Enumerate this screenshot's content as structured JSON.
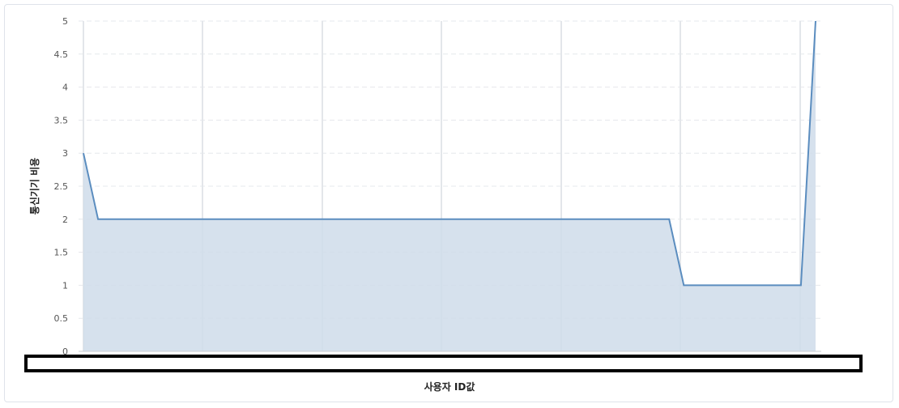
{
  "chart_data": {
    "type": "area",
    "title": "",
    "xlabel": "사용자 ID값",
    "ylabel": "통신기기 비용",
    "ylim": [
      0,
      5
    ],
    "yticks": [
      "0",
      "0.5",
      "1",
      "1.5",
      "2",
      "2.5",
      "3",
      "3.5",
      "4",
      "4.5",
      "5"
    ],
    "grid": true,
    "series": [
      {
        "points": [
          [
            0,
            3
          ],
          [
            0.02,
            2
          ],
          [
            0.8,
            2
          ],
          [
            0.82,
            1
          ],
          [
            0.98,
            1
          ],
          [
            1.0,
            5
          ]
        ]
      }
    ],
    "colors": {
      "line": "#5b8dbf",
      "fill": "#cfdcea"
    }
  }
}
